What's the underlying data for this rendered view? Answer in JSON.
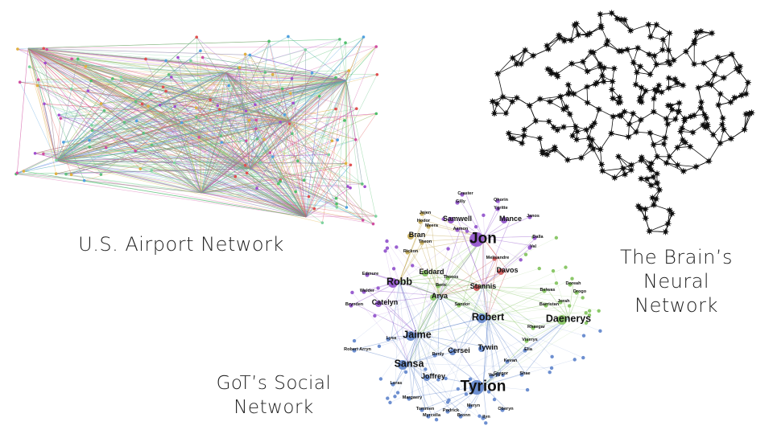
{
  "captions": {
    "airport": "U.S. Airport Network",
    "got_line1": "GoT’s Social",
    "got_line2": "Network",
    "brain_line1": "The Brain’s",
    "brain_line2": "Neural",
    "brain_line3": "Network"
  },
  "colors": {
    "airport": [
      "#4fbf6b",
      "#7fd3a0",
      "#a04fd0",
      "#d04fa0",
      "#e05050",
      "#e0b040",
      "#50a0e0",
      "#60c080"
    ],
    "brain": "#111111",
    "got_blue": "#6d8fd0",
    "got_purple": "#9a60d0",
    "got_green": "#8cc86a",
    "got_red": "#d06060",
    "got_olive": "#c8b060"
  },
  "got_characters": [
    {
      "name": "Tyrion",
      "group": "blue",
      "big": 3
    },
    {
      "name": "Jon",
      "group": "purple",
      "big": 3
    },
    {
      "name": "Daenerys",
      "group": "green",
      "big": 2
    },
    {
      "name": "Robb",
      "group": "purple",
      "big": 2
    },
    {
      "name": "Jaime",
      "group": "blue",
      "big": 2
    },
    {
      "name": "Sansa",
      "group": "blue",
      "big": 2
    },
    {
      "name": "Robert",
      "group": "blue",
      "big": 2
    },
    {
      "name": "Stannis",
      "group": "red",
      "big": 1
    },
    {
      "name": "Samwell",
      "group": "purple",
      "big": 1
    },
    {
      "name": "Mance",
      "group": "purple",
      "big": 1
    },
    {
      "name": "Bran",
      "group": "olive",
      "big": 1
    },
    {
      "name": "Arya",
      "group": "green",
      "big": 1
    },
    {
      "name": "Catelyn",
      "group": "purple",
      "big": 1
    },
    {
      "name": "Eddard",
      "group": "green",
      "big": 1
    },
    {
      "name": "Cersei",
      "group": "blue",
      "big": 1
    },
    {
      "name": "Tywin",
      "group": "blue",
      "big": 1
    },
    {
      "name": "Joffrey",
      "group": "blue",
      "big": 1
    },
    {
      "name": "Davos",
      "group": "red",
      "big": 1
    },
    {
      "name": "Sandor",
      "group": "green",
      "big": 0
    },
    {
      "name": "Lysa",
      "group": "blue",
      "big": 0
    },
    {
      "name": "Gregor",
      "group": "blue",
      "big": 0
    },
    {
      "name": "Oberyn",
      "group": "blue",
      "big": 0
    },
    {
      "name": "Kevan",
      "group": "blue",
      "big": 0
    },
    {
      "name": "Loras",
      "group": "blue",
      "big": 0
    },
    {
      "name": "Margaery",
      "group": "blue",
      "big": 0
    },
    {
      "name": "Barristan",
      "group": "green",
      "big": 0
    },
    {
      "name": "Jorah",
      "group": "green",
      "big": 0
    },
    {
      "name": "Rhaegar",
      "group": "green",
      "big": 0
    },
    {
      "name": "Walder",
      "group": "purple",
      "big": 0
    },
    {
      "name": "Edmure",
      "group": "purple",
      "big": 0
    },
    {
      "name": "Brynden",
      "group": "purple",
      "big": 0
    },
    {
      "name": "Rickon",
      "group": "olive",
      "big": 0
    },
    {
      "name": "Janos",
      "group": "purple",
      "big": 0
    },
    {
      "name": "Craster",
      "group": "purple",
      "big": 0
    },
    {
      "name": "Melisandre",
      "group": "red",
      "big": 0
    },
    {
      "name": "Varys",
      "group": "blue",
      "big": 0
    },
    {
      "name": "Podrick",
      "group": "blue",
      "big": 0
    },
    {
      "name": "Meryn",
      "group": "blue",
      "big": 0
    },
    {
      "name": "Renly",
      "group": "blue",
      "big": 0
    },
    {
      "name": "Tommen",
      "group": "blue",
      "big": 0
    },
    {
      "name": "Myrcella",
      "group": "blue",
      "big": 0
    },
    {
      "name": "Bronn",
      "group": "blue",
      "big": 0
    },
    {
      "name": "Shae",
      "group": "blue",
      "big": 0
    },
    {
      "name": "Ilyn",
      "group": "blue",
      "big": 0
    },
    {
      "name": "Robert Arryn",
      "group": "blue",
      "big": 0
    },
    {
      "name": "Elia",
      "group": "blue",
      "big": 0
    },
    {
      "name": "Viserys",
      "group": "green",
      "big": 0
    },
    {
      "name": "Drogo",
      "group": "green",
      "big": 0
    },
    {
      "name": "Doreah",
      "group": "green",
      "big": 0
    },
    {
      "name": "Belwas",
      "group": "green",
      "big": 0
    },
    {
      "name": "Jojen",
      "group": "olive",
      "big": 0
    },
    {
      "name": "Hodor",
      "group": "olive",
      "big": 0
    },
    {
      "name": "Meera",
      "group": "olive",
      "big": 0
    },
    {
      "name": "Theon",
      "group": "olive",
      "big": 0
    },
    {
      "name": "Gilly",
      "group": "purple",
      "big": 0
    },
    {
      "name": "Ygritte",
      "group": "purple",
      "big": 0
    },
    {
      "name": "Qhorin",
      "group": "purple",
      "big": 0
    },
    {
      "name": "Aemon",
      "group": "purple",
      "big": 0
    },
    {
      "name": "Dalla",
      "group": "purple",
      "big": 0
    },
    {
      "name": "Val",
      "group": "purple",
      "big": 0
    },
    {
      "name": "Beric",
      "group": "green",
      "big": 0
    },
    {
      "name": "Thoros",
      "group": "green",
      "big": 0
    }
  ]
}
